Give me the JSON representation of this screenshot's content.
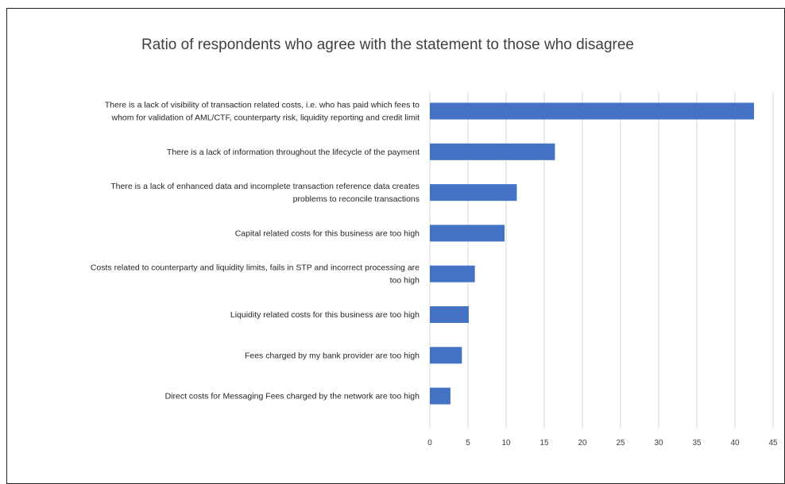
{
  "chart_data": {
    "type": "bar",
    "orientation": "horizontal",
    "title": "Ratio of respondents who agree with the statement to those who disagree",
    "xlabel": "",
    "ylabel": "",
    "categories": [
      [
        "There is a lack of visibility of transaction related costs, i.e. who has paid which fees to",
        "whom for validation of AML/CTF, counterparty risk, liquidity reporting and credit limit"
      ],
      [
        "There is a lack of information throughout the lifecycle of the payment"
      ],
      [
        "There is a lack of enhanced data and incomplete transaction reference data creates",
        "problems to reconcile transactions"
      ],
      [
        "Capital related costs for this business are too high"
      ],
      [
        "Costs related to counterparty and liquidity limits, fails in STP and incorrect processing are",
        "too high"
      ],
      [
        "Liquidity related costs for this business are too high"
      ],
      [
        "Fees charged by my bank provider are too high"
      ],
      [
        "Direct costs for Messaging Fees charged by the network are too high"
      ]
    ],
    "values": [
      42.5,
      16.4,
      11.4,
      9.8,
      5.9,
      5.1,
      4.2,
      2.7
    ],
    "xlim": [
      0,
      45
    ],
    "xticks": [
      "0",
      "5",
      "10",
      "15",
      "20",
      "25",
      "30",
      "35",
      "40",
      "45"
    ],
    "grid": "vertical",
    "legend": "none",
    "bar_color": "#4472C4",
    "grid_color": "#D9D9D9"
  }
}
